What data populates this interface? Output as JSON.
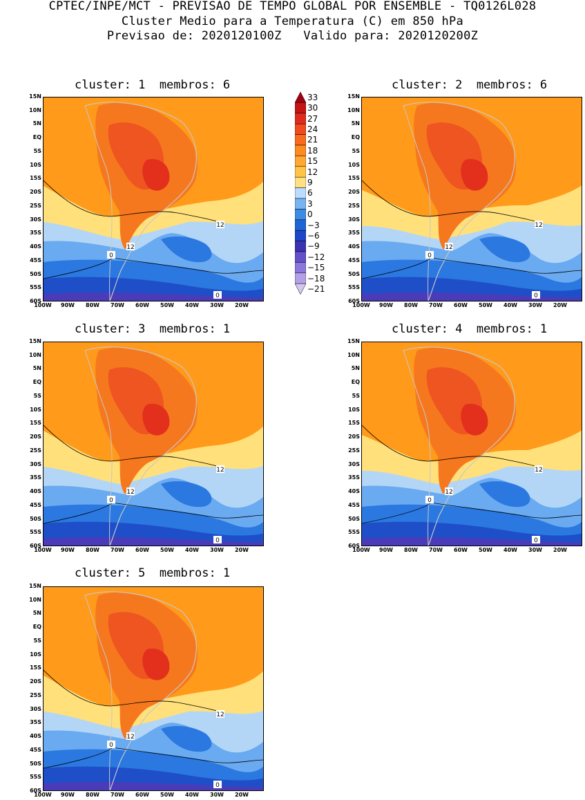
{
  "header": {
    "line1": "CPTEC/INPE/MCT - PREVISAO DE TEMPO GLOBAL POR ENSEMBLE - TQ0126L028",
    "line2": "Cluster Medio para a Temperatura (C) em 850 hPa",
    "line3": "Previsao de: 2020120100Z   Valido para: 2020120200Z"
  },
  "panels": [
    {
      "title": "cluster: 1  membros: 6"
    },
    {
      "title": "cluster: 2  membros: 6"
    },
    {
      "title": "cluster: 3  membros: 1"
    },
    {
      "title": "cluster: 4  membros: 1"
    },
    {
      "title": "cluster: 5  membros: 1"
    }
  ],
  "axes": {
    "lat_labels": [
      "15N",
      "10N",
      "5N",
      "EQ",
      "5S",
      "10S",
      "15S",
      "20S",
      "25S",
      "30S",
      "35S",
      "40S",
      "45S",
      "50S",
      "55S",
      "60S"
    ],
    "lon_labels": [
      "100W",
      "90W",
      "80W",
      "70W",
      "60W",
      "50W",
      "40W",
      "30W",
      "20W"
    ]
  },
  "contour_labels": {
    "twelve": "12",
    "zero": "0"
  },
  "colorbar": {
    "levels": [
      "33",
      "30",
      "27",
      "24",
      "21",
      "18",
      "15",
      "12",
      "9",
      "6",
      "3",
      "0",
      "-3",
      "-6",
      "-9",
      "-12",
      "-15",
      "-18",
      "-21"
    ],
    "colors": [
      "#a00014",
      "#c41414",
      "#e02a1e",
      "#f04a1e",
      "#fa6a1e",
      "#ff8a1e",
      "#ffa832",
      "#ffc446",
      "#ffe082",
      "#bcdcff",
      "#78b4f0",
      "#3c8ce6",
      "#1e64d2",
      "#1e46c8",
      "#3c32b4",
      "#6450c8",
      "#8c78dc",
      "#b4a0e6",
      "#d2c8f0"
    ]
  },
  "colors": {
    "ocean_warm": "#ff9a1a",
    "warm2": "#f6781e",
    "hot": "#ee5520",
    "hotter": "#e2301c",
    "pale": "#ffe07a",
    "lightblue": "#b4d6f6",
    "blue1": "#6aaaf0",
    "blue2": "#2a78e0",
    "deep": "#1e4ec8",
    "purple": "#4a3cb8",
    "land": "#c8c8c8"
  }
}
